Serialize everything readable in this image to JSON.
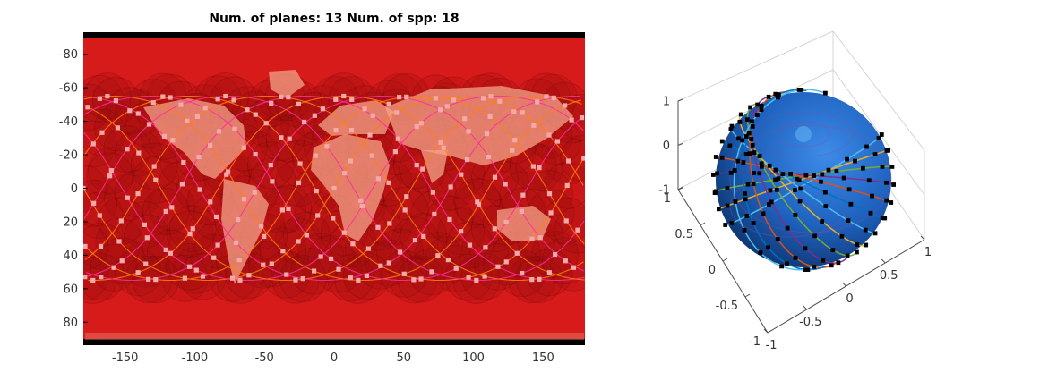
{
  "chart_data": [
    {
      "type": "scatter",
      "title": "Num. of planes: 13 Num. of spp: 18",
      "num_planes": 13,
      "satellites_per_plane": 18,
      "xlim": [
        -180,
        180
      ],
      "ylim": [
        -90,
        90
      ],
      "y_reversed": true,
      "x_ticks": [
        -150,
        -100,
        -50,
        0,
        50,
        100,
        150
      ],
      "x_tick_labels": [
        "-150",
        "-100",
        "-50",
        "0",
        "50",
        "100",
        "150"
      ],
      "y_ticks": [
        -80,
        -60,
        -40,
        -20,
        0,
        20,
        40,
        60,
        80
      ],
      "y_tick_labels": [
        "-80",
        "-60",
        "-40",
        "-20",
        "0",
        "20",
        "40",
        "60",
        "80"
      ],
      "inclination_deg": 55,
      "colors": {
        "coverage": "#e01010",
        "ground_track_a": "#ff7f0e",
        "ground_track_b": "#ff2d9a",
        "satellite_marker": "#f3a9a9",
        "land": "#f0a0a0",
        "frame": "#000000"
      }
    },
    {
      "type": "scatter",
      "xlim": [
        -1,
        1
      ],
      "ylim": [
        -1,
        1
      ],
      "zlim": [
        -1,
        1
      ],
      "x_ticks": [
        -1,
        -0.5,
        0,
        0.5,
        1
      ],
      "x_tick_labels": [
        "-1",
        "-0.5",
        "0",
        "0.5",
        "1"
      ],
      "y_ticks": [
        -1,
        -0.5,
        0,
        0.5,
        1
      ],
      "y_tick_labels": [
        "-1",
        "-0.5",
        "0",
        "0.5",
        "1"
      ],
      "z_ticks": [
        -1,
        0,
        1
      ],
      "z_tick_labels": [
        "-1",
        "0",
        "1"
      ],
      "grid": true,
      "colors": {
        "sphere": "#1f6fd0",
        "sphere_dark": "#0c2f66",
        "orbits": [
          "#4dbeee",
          "#edb120",
          "#77ac30",
          "#7e2f8e",
          "#d95319",
          "#0072bd"
        ],
        "satellite_marker": "#000000"
      }
    }
  ]
}
